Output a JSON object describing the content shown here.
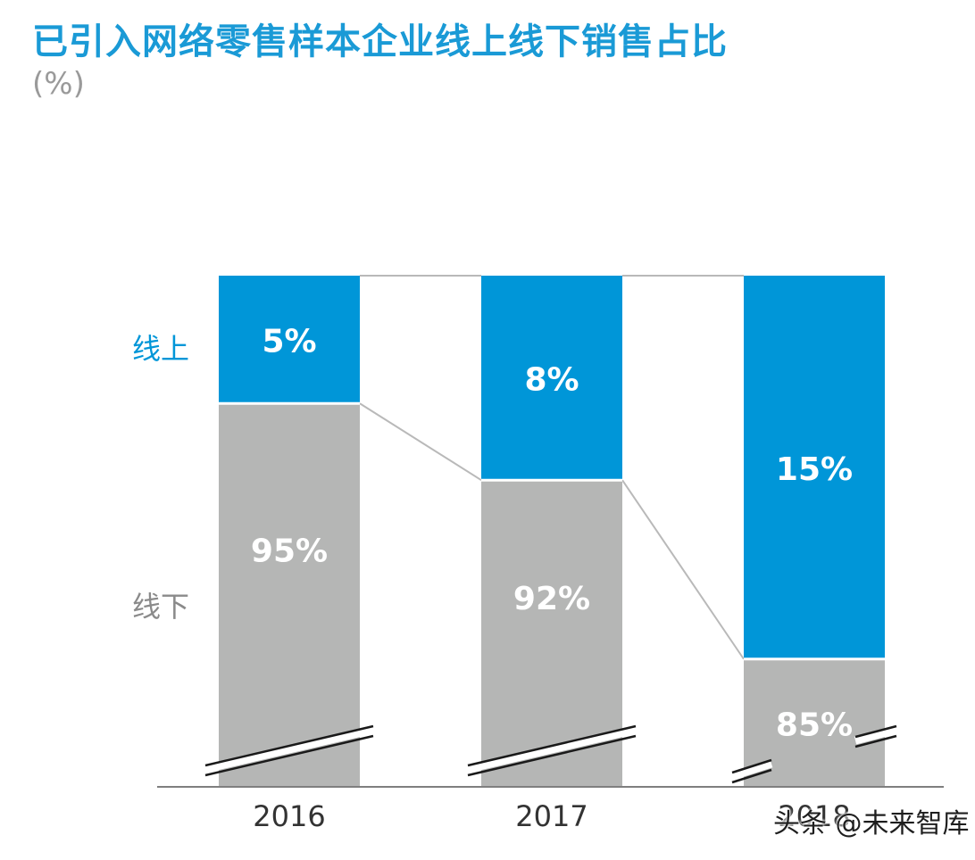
{
  "title": "已引入网络零售样本企业线上线下销售占比",
  "unit": "(%)",
  "watermark": "头条 @未来智库",
  "colors": {
    "online": "#0096d8",
    "offline": "#b5b6b5",
    "title": "#1a9ad6",
    "axis": "#7f7f7f",
    "connector": "#b9b9b9"
  },
  "chart_data": {
    "type": "bar",
    "stacked": true,
    "categories": [
      "2016",
      "2017",
      "2018"
    ],
    "series": [
      {
        "name": "线上",
        "values": [
          5,
          8,
          15
        ],
        "labels": [
          "5%",
          "8%",
          "15%"
        ],
        "color": "#0096d8"
      },
      {
        "name": "线下",
        "values": [
          95,
          92,
          85
        ],
        "labels": [
          "95%",
          "92%",
          "85%"
        ],
        "color": "#b5b6b5"
      }
    ],
    "ylim": [
      80,
      100
    ],
    "axis_break": true,
    "grid": false,
    "legend": "left"
  }
}
